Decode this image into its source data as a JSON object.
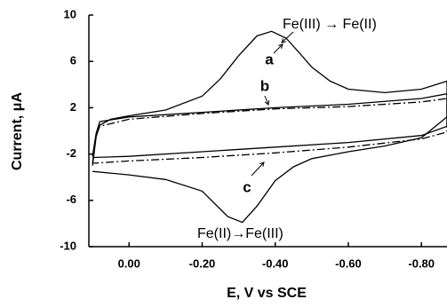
{
  "chart_data": {
    "type": "line",
    "x_label": "E, V vs SCE",
    "y_label": "Current, μA",
    "xlim": [
      0.11,
      -0.87
    ],
    "ylim": [
      -10,
      10
    ],
    "xticks": [
      {
        "value": 0,
        "label": "0.00"
      },
      {
        "value": -0.2,
        "label": "-0.20"
      },
      {
        "value": -0.4,
        "label": "-0.40"
      },
      {
        "value": -0.6,
        "label": "-0.60"
      },
      {
        "value": -0.8,
        "label": "-0.80"
      }
    ],
    "yticks": [
      10,
      6,
      2,
      -2,
      -6,
      -10
    ],
    "series": [
      {
        "color": "#000000",
        "style": "solid",
        "x": [
          0.1,
          0.09,
          0.08,
          0.05,
          0.0,
          -0.1,
          -0.2,
          -0.25,
          -0.3,
          -0.35,
          -0.39,
          -0.43,
          -0.47,
          -0.5,
          -0.55,
          -0.6,
          -0.7,
          -0.8,
          -0.87,
          -0.87,
          -0.8,
          -0.7,
          -0.6,
          -0.5,
          -0.45,
          -0.4,
          -0.35,
          -0.31,
          -0.27,
          -0.2,
          -0.1,
          0.0,
          0.1
        ],
        "values": [
          -3.0,
          -0.5,
          0.5,
          1.0,
          1.3,
          1.8,
          3.0,
          4.5,
          6.5,
          8.2,
          8.6,
          8.0,
          6.6,
          5.5,
          4.3,
          3.6,
          3.3,
          3.6,
          4.3,
          1.2,
          -0.6,
          -1.3,
          -1.8,
          -2.4,
          -3.1,
          -4.3,
          -6.5,
          -7.9,
          -7.4,
          -5.2,
          -4.2,
          -3.8,
          -3.5
        ]
      },
      {
        "color": "#000000",
        "style": "solid",
        "x": [
          0.1,
          0.09,
          0.08,
          0.0,
          -0.2,
          -0.4,
          -0.6,
          -0.8,
          -0.87,
          -0.87,
          -0.8,
          -0.6,
          -0.4,
          -0.2,
          0.0,
          0.1
        ],
        "values": [
          -2.2,
          -0.2,
          0.8,
          1.2,
          1.6,
          2.0,
          2.3,
          2.8,
          3.2,
          0.4,
          -0.4,
          -1.0,
          -1.4,
          -1.8,
          -2.2,
          -2.3
        ]
      },
      {
        "color": "#000000",
        "style": "dash-dot",
        "x": [
          0.1,
          0.09,
          0.08,
          0.0,
          -0.2,
          -0.4,
          -0.6,
          -0.8,
          -0.87,
          -0.87,
          -0.8,
          -0.6,
          -0.4,
          -0.2,
          0.0,
          0.1
        ],
        "values": [
          -2.8,
          -0.4,
          0.4,
          1.0,
          1.5,
          1.9,
          2.1,
          2.5,
          2.8,
          -0.1,
          -0.7,
          -1.4,
          -1.9,
          -2.3,
          -2.6,
          -2.8
        ]
      }
    ],
    "annotations": [
      {
        "text": "Fe(III) → Fe(II)"
      },
      {
        "text": "a"
      },
      {
        "text": "b"
      },
      {
        "text": "c"
      },
      {
        "text": "Fe(II)→Fe(III)"
      }
    ]
  }
}
